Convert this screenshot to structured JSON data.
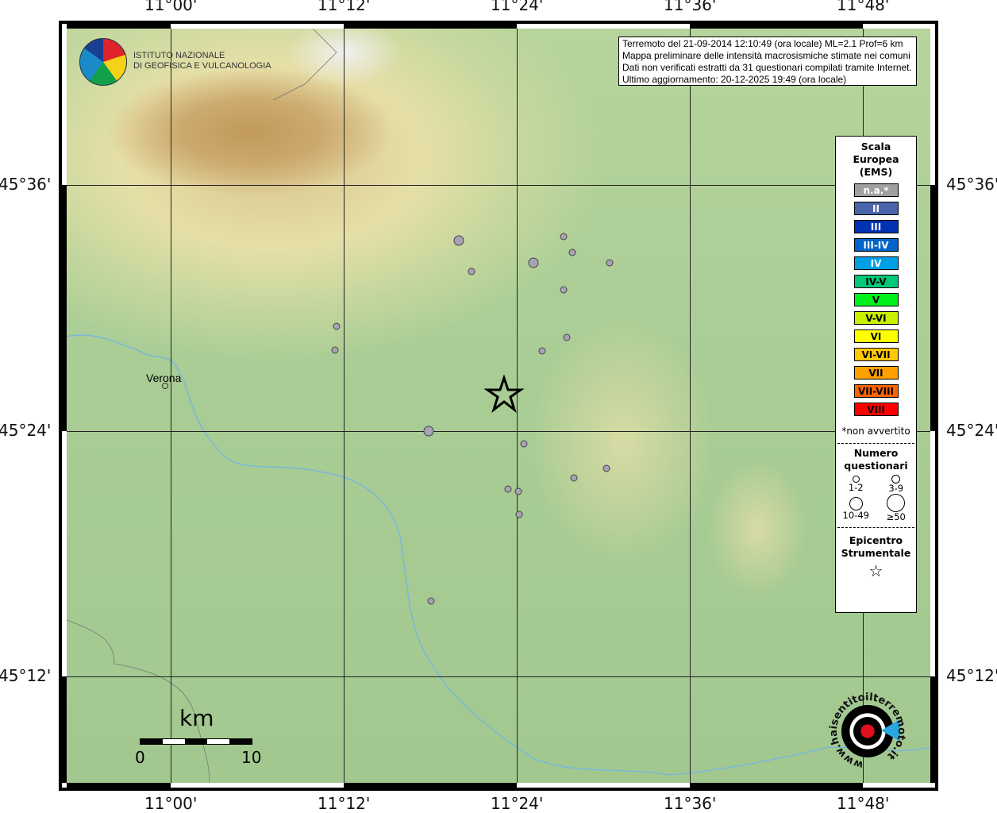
{
  "info": {
    "lines": [
      "Terremoto del 21-09-2014 12:10:49 (ora locale) ML=2.1 Prof=6 km",
      "Mappa preliminare delle intensità macrosismiche stimate nei comuni",
      "Dati non verificati estratti da 31 questionari compilati tramite Internet.",
      "Ultimo aggiornamento: 20-12-2025 19:49 (ora locale)"
    ]
  },
  "logo_ingv": {
    "line1": "ISTITUTO NAZIONALE",
    "line2": "DI GEOFISICA E VULCANOLOGIA"
  },
  "logo_hsit": "www.haisentitoilterremoto.it",
  "axes": {
    "lon": [
      "11°00'",
      "11°12'",
      "11°24'",
      "11°36'",
      "11°48'"
    ],
    "lat": [
      "45°36'",
      "45°24'",
      "45°12'"
    ]
  },
  "places": [
    {
      "name": "Verona"
    }
  ],
  "legend": {
    "title": [
      "Scala",
      "Europea",
      "(EMS)"
    ],
    "classes": [
      {
        "label": "n.a.*",
        "color": "#a0a0a0",
        "text": "#ffffff"
      },
      {
        "label": "II",
        "color": "#4a64aa",
        "text": "#ffffff"
      },
      {
        "label": "III",
        "color": "#0032b4",
        "text": "#ffffff"
      },
      {
        "label": "III-IV",
        "color": "#0064c8",
        "text": "#ffffff"
      },
      {
        "label": "IV",
        "color": "#00a0e6",
        "text": "#ffffff"
      },
      {
        "label": "IV-V",
        "color": "#00c878",
        "text": "#000000"
      },
      {
        "label": "V",
        "color": "#00f01e",
        "text": "#000000"
      },
      {
        "label": "V-VI",
        "color": "#c8f000",
        "text": "#000000"
      },
      {
        "label": "VI",
        "color": "#ffff00",
        "text": "#000000"
      },
      {
        "label": "VI-VII",
        "color": "#ffc800",
        "text": "#000000"
      },
      {
        "label": "VII",
        "color": "#ffa000",
        "text": "#000000"
      },
      {
        "label": "VII-VIII",
        "color": "#ff6400",
        "text": "#000000"
      },
      {
        "label": "VIII",
        "color": "#ff0000",
        "text": "#000000"
      }
    ],
    "note": "*non avvertito",
    "count_title": [
      "Numero",
      "questionari"
    ],
    "sizes": [
      "1-2",
      "3-9",
      "10-49",
      "≥50"
    ],
    "epicenter_title": [
      "Epicentro",
      "Strumentale"
    ]
  },
  "scale_bar": {
    "unit": "km",
    "min": "0",
    "max": "10"
  },
  "observations": [
    {
      "lon": 11.333,
      "lat": 45.555,
      "class": "n.a.*",
      "count": "3-9"
    },
    {
      "lon": 11.454,
      "lat": 45.558,
      "class": "n.a.*",
      "count": "1-2"
    },
    {
      "lon": 11.464,
      "lat": 45.545,
      "class": "n.a.*",
      "count": "1-2"
    },
    {
      "lon": 11.419,
      "lat": 45.537,
      "class": "n.a.*",
      "count": "3-9"
    },
    {
      "lon": 11.507,
      "lat": 45.537,
      "class": "n.a.*",
      "count": "1-2"
    },
    {
      "lon": 11.348,
      "lat": 45.53,
      "class": "n.a.*",
      "count": "1-2"
    },
    {
      "lon": 11.454,
      "lat": 45.515,
      "class": "n.a.*",
      "count": "1-2"
    },
    {
      "lon": 11.192,
      "lat": 45.485,
      "class": "n.a.*",
      "count": "1-2"
    },
    {
      "lon": 11.458,
      "lat": 45.476,
      "class": "n.a.*",
      "count": "1-2"
    },
    {
      "lon": 11.429,
      "lat": 45.465,
      "class": "n.a.*",
      "count": "1-2"
    },
    {
      "lon": 11.19,
      "lat": 45.466,
      "class": "n.a.*",
      "count": "1-2"
    },
    {
      "lon": 11.298,
      "lat": 45.4,
      "class": "n.a.*",
      "count": "3-9"
    },
    {
      "lon": 11.408,
      "lat": 45.39,
      "class": "n.a.*",
      "count": "1-2"
    },
    {
      "lon": 11.504,
      "lat": 45.37,
      "class": "n.a.*",
      "count": "1-2"
    },
    {
      "lon": 11.466,
      "lat": 45.362,
      "class": "n.a.*",
      "count": "1-2"
    },
    {
      "lon": 11.39,
      "lat": 45.353,
      "class": "n.a.*",
      "count": "1-2"
    },
    {
      "lon": 11.402,
      "lat": 45.351,
      "class": "n.a.*",
      "count": "1-2"
    },
    {
      "lon": 11.403,
      "lat": 45.332,
      "class": "n.a.*",
      "count": "1-2"
    },
    {
      "lon": 11.301,
      "lat": 45.262,
      "class": "n.a.*",
      "count": "1-2"
    }
  ],
  "epicenter": {
    "lon": 11.385,
    "lat": 45.43
  }
}
